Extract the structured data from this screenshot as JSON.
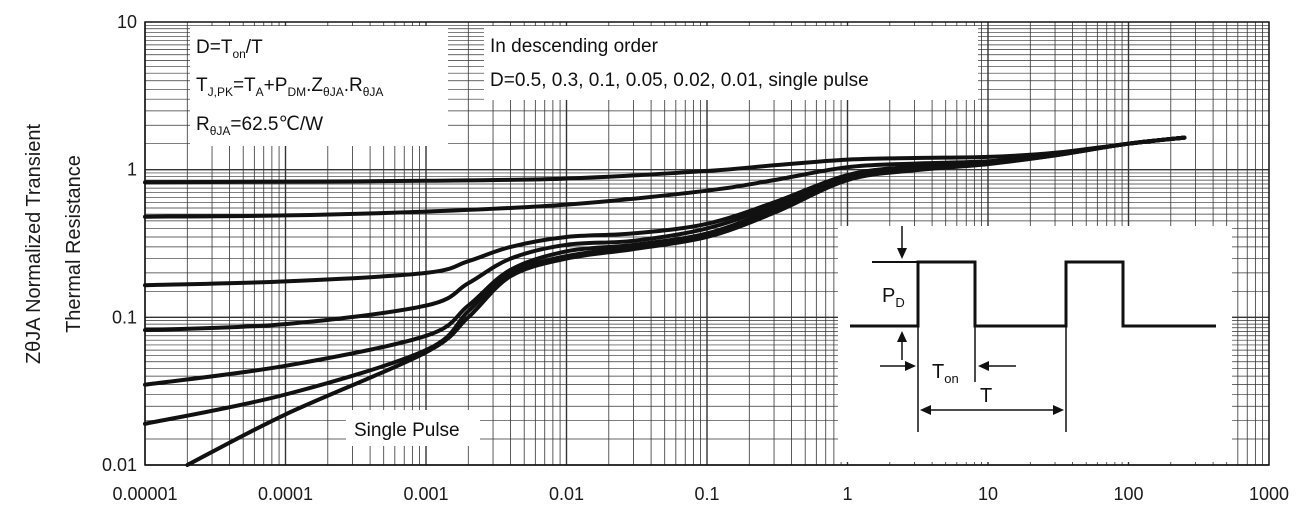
{
  "colors": {
    "curve": "#111111",
    "grid": "#333333",
    "frame": "#111111",
    "background": "#ffffff"
  },
  "chart_data": {
    "type": "line",
    "title": "",
    "xlabel": "",
    "ylabel_line1": "ZθJA Normalized Transient",
    "ylabel_line2": "Thermal Resistance",
    "x_scale": "log",
    "y_scale": "log",
    "xlim": [
      1e-05,
      1000
    ],
    "ylim": [
      0.01,
      10
    ],
    "grid": true,
    "x_ticks": [
      "0.00001",
      "0.0001",
      "0.001",
      "0.01",
      "0.1",
      "1",
      "10",
      "100",
      "1000"
    ],
    "y_ticks": [
      "0.01",
      "0.1",
      "1",
      "10"
    ],
    "annotations": {
      "box1": {
        "line1": "D=T",
        "line1_sub": "on",
        "line1_end": "/T",
        "line2_a": "T",
        "line2_a_sub": "J,PK",
        "line2_b": "=T",
        "line2_b_sub": "A",
        "line2_c": "+P",
        "line2_c_sub": "DM",
        "line2_d": ".Z",
        "line2_d_sub": "θJA",
        "line2_e": ".R",
        "line2_e_sub": "θJA",
        "line3_a": "R",
        "line3_a_sub": "θJA",
        "line3_b": "=62.5℃/W"
      },
      "box2": {
        "line1": "In descending order",
        "line2": "D=0.5, 0.3, 0.1, 0.05, 0.02, 0.01, single pulse"
      },
      "single_pulse_label": "Single Pulse"
    },
    "inset": {
      "pd": "P",
      "pd_sub": "D",
      "ton": "T",
      "ton_sub": "on",
      "period": "T"
    },
    "series": [
      {
        "name": "D=0.5",
        "x": [
          1e-05,
          0.0001,
          0.001,
          0.01,
          0.1,
          0.3,
          1,
          3,
          10,
          30,
          100,
          250
        ],
        "y": [
          0.82,
          0.83,
          0.84,
          0.87,
          0.98,
          1.07,
          1.17,
          1.2,
          1.22,
          1.3,
          1.5,
          1.65
        ]
      },
      {
        "name": "D=0.3",
        "x": [
          1e-05,
          0.0001,
          0.001,
          0.01,
          0.1,
          0.3,
          1,
          3,
          10,
          30,
          100,
          250
        ],
        "y": [
          0.48,
          0.49,
          0.52,
          0.58,
          0.72,
          0.85,
          1.04,
          1.1,
          1.14,
          1.27,
          1.5,
          1.65
        ]
      },
      {
        "name": "D=0.1",
        "x": [
          1e-05,
          0.0001,
          0.001,
          0.002,
          0.004,
          0.01,
          0.03,
          0.1,
          0.3,
          1,
          3,
          10,
          30,
          100,
          250
        ],
        "y": [
          0.165,
          0.175,
          0.2,
          0.24,
          0.3,
          0.35,
          0.37,
          0.43,
          0.6,
          0.92,
          1.05,
          1.12,
          1.27,
          1.5,
          1.65
        ]
      },
      {
        "name": "D=0.05",
        "x": [
          1e-05,
          0.0001,
          0.001,
          0.002,
          0.004,
          0.01,
          0.03,
          0.1,
          0.3,
          1,
          3,
          10,
          30,
          100,
          250
        ],
        "y": [
          0.082,
          0.09,
          0.12,
          0.17,
          0.25,
          0.31,
          0.33,
          0.4,
          0.57,
          0.9,
          1.03,
          1.11,
          1.26,
          1.5,
          1.65
        ]
      },
      {
        "name": "D=0.02",
        "x": [
          1e-05,
          0.0001,
          0.001,
          0.002,
          0.004,
          0.01,
          0.03,
          0.1,
          0.3,
          1,
          3,
          10,
          30,
          100,
          250
        ],
        "y": [
          0.035,
          0.047,
          0.075,
          0.12,
          0.21,
          0.28,
          0.31,
          0.37,
          0.54,
          0.87,
          1.01,
          1.1,
          1.26,
          1.5,
          1.65
        ]
      },
      {
        "name": "D=0.01",
        "x": [
          1e-05,
          0.0001,
          0.001,
          0.002,
          0.004,
          0.01,
          0.03,
          0.1,
          0.3,
          1,
          3,
          10,
          30,
          100,
          250
        ],
        "y": [
          0.019,
          0.03,
          0.06,
          0.11,
          0.2,
          0.26,
          0.3,
          0.36,
          0.52,
          0.86,
          1.0,
          1.1,
          1.25,
          1.5,
          1.65
        ]
      },
      {
        "name": "single pulse",
        "x": [
          2e-05,
          0.0001,
          0.001,
          0.002,
          0.004,
          0.01,
          0.03,
          0.1,
          0.3,
          1,
          3,
          10,
          30,
          100,
          250
        ],
        "y": [
          0.01,
          0.022,
          0.058,
          0.1,
          0.19,
          0.25,
          0.29,
          0.35,
          0.51,
          0.85,
          0.99,
          1.09,
          1.25,
          1.5,
          1.65
        ]
      }
    ]
  }
}
